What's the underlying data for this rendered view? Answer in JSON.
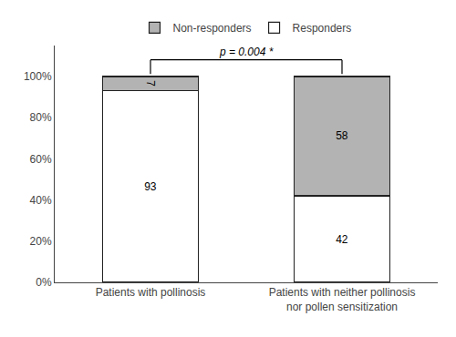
{
  "chart_data": {
    "type": "bar",
    "stacked": true,
    "categories": [
      "Patients with pollinosis",
      "Patients with neither pollinosis\nnor pollen sensitization"
    ],
    "series": [
      {
        "name": "Responders",
        "color": "#ffffff",
        "values": [
          93,
          42
        ]
      },
      {
        "name": "Non-responders",
        "color": "#b3b3b3",
        "values": [
          7,
          58
        ]
      }
    ],
    "ylim": [
      0,
      115
    ],
    "yticks": [
      {
        "value": 0,
        "label": "0%"
      },
      {
        "value": 20,
        "label": "20%"
      },
      {
        "value": 40,
        "label": "40%"
      },
      {
        "value": 60,
        "label": "60%"
      },
      {
        "value": 80,
        "label": "80%"
      },
      {
        "value": 100,
        "label": "100%"
      }
    ],
    "data_labels": true,
    "legend": "upper center",
    "grid": false,
    "annotations": [
      "p = 0.004 *"
    ]
  }
}
